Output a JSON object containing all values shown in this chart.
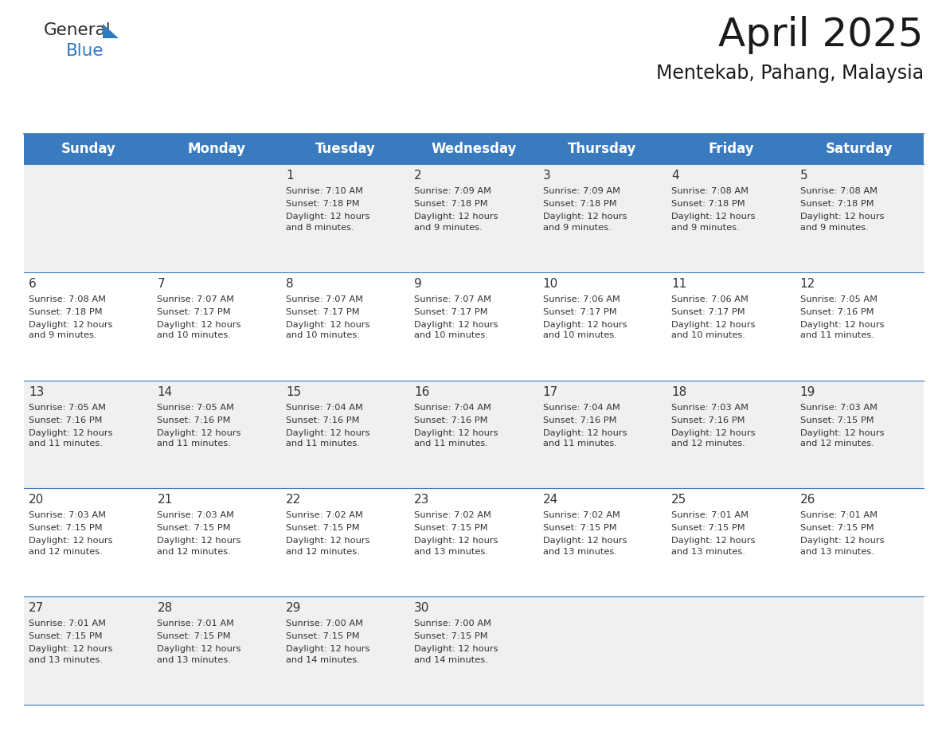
{
  "title": "April 2025",
  "subtitle": "Mentekab, Pahang, Malaysia",
  "header_bg_color": "#3a7abf",
  "header_text_color": "#ffffff",
  "day_names": [
    "Sunday",
    "Monday",
    "Tuesday",
    "Wednesday",
    "Thursday",
    "Friday",
    "Saturday"
  ],
  "row_bg_even": "#f0f0f0",
  "row_bg_odd": "#ffffff",
  "text_color": "#333333",
  "grid_color": "#3a7abf",
  "logo_general_color": "#2b2b2b",
  "logo_blue_color": "#2e7abf",
  "title_fontsize": 36,
  "subtitle_fontsize": 17,
  "header_fontsize": 12,
  "date_fontsize": 11,
  "cell_fontsize": 8.2,
  "cells": [
    {
      "row": 0,
      "col": 0,
      "date": "",
      "sunrise": "",
      "sunset": "",
      "daylight": ""
    },
    {
      "row": 0,
      "col": 1,
      "date": "",
      "sunrise": "",
      "sunset": "",
      "daylight": ""
    },
    {
      "row": 0,
      "col": 2,
      "date": "1",
      "sunrise": "Sunrise: 7:10 AM",
      "sunset": "Sunset: 7:18 PM",
      "daylight": "Daylight: 12 hours\nand 8 minutes."
    },
    {
      "row": 0,
      "col": 3,
      "date": "2",
      "sunrise": "Sunrise: 7:09 AM",
      "sunset": "Sunset: 7:18 PM",
      "daylight": "Daylight: 12 hours\nand 9 minutes."
    },
    {
      "row": 0,
      "col": 4,
      "date": "3",
      "sunrise": "Sunrise: 7:09 AM",
      "sunset": "Sunset: 7:18 PM",
      "daylight": "Daylight: 12 hours\nand 9 minutes."
    },
    {
      "row": 0,
      "col": 5,
      "date": "4",
      "sunrise": "Sunrise: 7:08 AM",
      "sunset": "Sunset: 7:18 PM",
      "daylight": "Daylight: 12 hours\nand 9 minutes."
    },
    {
      "row": 0,
      "col": 6,
      "date": "5",
      "sunrise": "Sunrise: 7:08 AM",
      "sunset": "Sunset: 7:18 PM",
      "daylight": "Daylight: 12 hours\nand 9 minutes."
    },
    {
      "row": 1,
      "col": 0,
      "date": "6",
      "sunrise": "Sunrise: 7:08 AM",
      "sunset": "Sunset: 7:18 PM",
      "daylight": "Daylight: 12 hours\nand 9 minutes."
    },
    {
      "row": 1,
      "col": 1,
      "date": "7",
      "sunrise": "Sunrise: 7:07 AM",
      "sunset": "Sunset: 7:17 PM",
      "daylight": "Daylight: 12 hours\nand 10 minutes."
    },
    {
      "row": 1,
      "col": 2,
      "date": "8",
      "sunrise": "Sunrise: 7:07 AM",
      "sunset": "Sunset: 7:17 PM",
      "daylight": "Daylight: 12 hours\nand 10 minutes."
    },
    {
      "row": 1,
      "col": 3,
      "date": "9",
      "sunrise": "Sunrise: 7:07 AM",
      "sunset": "Sunset: 7:17 PM",
      "daylight": "Daylight: 12 hours\nand 10 minutes."
    },
    {
      "row": 1,
      "col": 4,
      "date": "10",
      "sunrise": "Sunrise: 7:06 AM",
      "sunset": "Sunset: 7:17 PM",
      "daylight": "Daylight: 12 hours\nand 10 minutes."
    },
    {
      "row": 1,
      "col": 5,
      "date": "11",
      "sunrise": "Sunrise: 7:06 AM",
      "sunset": "Sunset: 7:17 PM",
      "daylight": "Daylight: 12 hours\nand 10 minutes."
    },
    {
      "row": 1,
      "col": 6,
      "date": "12",
      "sunrise": "Sunrise: 7:05 AM",
      "sunset": "Sunset: 7:16 PM",
      "daylight": "Daylight: 12 hours\nand 11 minutes."
    },
    {
      "row": 2,
      "col": 0,
      "date": "13",
      "sunrise": "Sunrise: 7:05 AM",
      "sunset": "Sunset: 7:16 PM",
      "daylight": "Daylight: 12 hours\nand 11 minutes."
    },
    {
      "row": 2,
      "col": 1,
      "date": "14",
      "sunrise": "Sunrise: 7:05 AM",
      "sunset": "Sunset: 7:16 PM",
      "daylight": "Daylight: 12 hours\nand 11 minutes."
    },
    {
      "row": 2,
      "col": 2,
      "date": "15",
      "sunrise": "Sunrise: 7:04 AM",
      "sunset": "Sunset: 7:16 PM",
      "daylight": "Daylight: 12 hours\nand 11 minutes."
    },
    {
      "row": 2,
      "col": 3,
      "date": "16",
      "sunrise": "Sunrise: 7:04 AM",
      "sunset": "Sunset: 7:16 PM",
      "daylight": "Daylight: 12 hours\nand 11 minutes."
    },
    {
      "row": 2,
      "col": 4,
      "date": "17",
      "sunrise": "Sunrise: 7:04 AM",
      "sunset": "Sunset: 7:16 PM",
      "daylight": "Daylight: 12 hours\nand 11 minutes."
    },
    {
      "row": 2,
      "col": 5,
      "date": "18",
      "sunrise": "Sunrise: 7:03 AM",
      "sunset": "Sunset: 7:16 PM",
      "daylight": "Daylight: 12 hours\nand 12 minutes."
    },
    {
      "row": 2,
      "col": 6,
      "date": "19",
      "sunrise": "Sunrise: 7:03 AM",
      "sunset": "Sunset: 7:15 PM",
      "daylight": "Daylight: 12 hours\nand 12 minutes."
    },
    {
      "row": 3,
      "col": 0,
      "date": "20",
      "sunrise": "Sunrise: 7:03 AM",
      "sunset": "Sunset: 7:15 PM",
      "daylight": "Daylight: 12 hours\nand 12 minutes."
    },
    {
      "row": 3,
      "col": 1,
      "date": "21",
      "sunrise": "Sunrise: 7:03 AM",
      "sunset": "Sunset: 7:15 PM",
      "daylight": "Daylight: 12 hours\nand 12 minutes."
    },
    {
      "row": 3,
      "col": 2,
      "date": "22",
      "sunrise": "Sunrise: 7:02 AM",
      "sunset": "Sunset: 7:15 PM",
      "daylight": "Daylight: 12 hours\nand 12 minutes."
    },
    {
      "row": 3,
      "col": 3,
      "date": "23",
      "sunrise": "Sunrise: 7:02 AM",
      "sunset": "Sunset: 7:15 PM",
      "daylight": "Daylight: 12 hours\nand 13 minutes."
    },
    {
      "row": 3,
      "col": 4,
      "date": "24",
      "sunrise": "Sunrise: 7:02 AM",
      "sunset": "Sunset: 7:15 PM",
      "daylight": "Daylight: 12 hours\nand 13 minutes."
    },
    {
      "row": 3,
      "col": 5,
      "date": "25",
      "sunrise": "Sunrise: 7:01 AM",
      "sunset": "Sunset: 7:15 PM",
      "daylight": "Daylight: 12 hours\nand 13 minutes."
    },
    {
      "row": 3,
      "col": 6,
      "date": "26",
      "sunrise": "Sunrise: 7:01 AM",
      "sunset": "Sunset: 7:15 PM",
      "daylight": "Daylight: 12 hours\nand 13 minutes."
    },
    {
      "row": 4,
      "col": 0,
      "date": "27",
      "sunrise": "Sunrise: 7:01 AM",
      "sunset": "Sunset: 7:15 PM",
      "daylight": "Daylight: 12 hours\nand 13 minutes."
    },
    {
      "row": 4,
      "col": 1,
      "date": "28",
      "sunrise": "Sunrise: 7:01 AM",
      "sunset": "Sunset: 7:15 PM",
      "daylight": "Daylight: 12 hours\nand 13 minutes."
    },
    {
      "row": 4,
      "col": 2,
      "date": "29",
      "sunrise": "Sunrise: 7:00 AM",
      "sunset": "Sunset: 7:15 PM",
      "daylight": "Daylight: 12 hours\nand 14 minutes."
    },
    {
      "row": 4,
      "col": 3,
      "date": "30",
      "sunrise": "Sunrise: 7:00 AM",
      "sunset": "Sunset: 7:15 PM",
      "daylight": "Daylight: 12 hours\nand 14 minutes."
    },
    {
      "row": 4,
      "col": 4,
      "date": "",
      "sunrise": "",
      "sunset": "",
      "daylight": ""
    },
    {
      "row": 4,
      "col": 5,
      "date": "",
      "sunrise": "",
      "sunset": "",
      "daylight": ""
    },
    {
      "row": 4,
      "col": 6,
      "date": "",
      "sunrise": "",
      "sunset": "",
      "daylight": ""
    }
  ]
}
